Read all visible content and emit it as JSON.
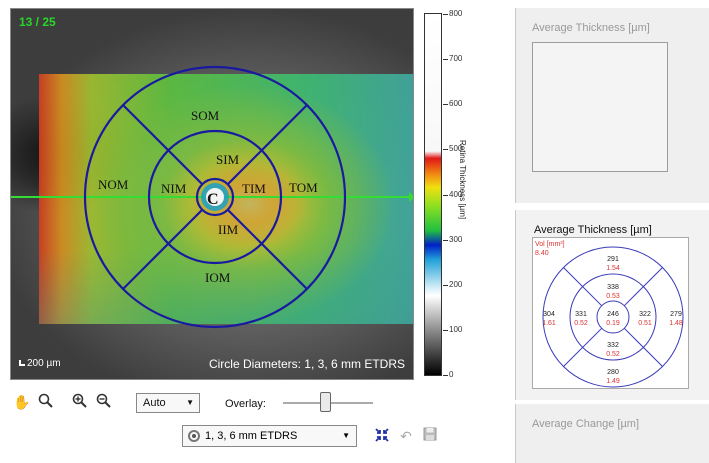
{
  "fundus": {
    "frame_counter": "13 / 25",
    "scale_label": "200 µm",
    "circle_diameters": "Circle Diameters: 1, 3, 6 mm ETDRS",
    "center_label": "C",
    "sectors": {
      "som": "SOM",
      "nom": "NOM",
      "tom": "TOM",
      "iom": "IOM",
      "sim": "SIM",
      "nim": "NIM",
      "tim": "TIM",
      "iim": "IIM"
    }
  },
  "colorbar": {
    "title": "Retina Thickness [µm]",
    "ticks": [
      "800",
      "700",
      "600",
      "500",
      "400",
      "300",
      "200",
      "100",
      "0"
    ]
  },
  "panels": {
    "top_title": "Average Thickness [µm]",
    "mid_title": "Average Thickness [µm]",
    "bottom_title": "Average Change [µm]"
  },
  "etdrs_map": {
    "vol_label": "Vol [mm³]",
    "vol_value": "8.40",
    "center": {
      "thickness": "246",
      "volume": "0.19"
    },
    "inner": {
      "superior": {
        "thickness": "338",
        "volume": "0.53"
      },
      "nasal": {
        "thickness": "331",
        "volume": "0.52"
      },
      "temporal": {
        "thickness": "322",
        "volume": "0.51"
      },
      "inferior": {
        "thickness": "332",
        "volume": "0.52"
      }
    },
    "outer": {
      "superior": {
        "thickness": "291",
        "volume": "1.54"
      },
      "nasal": {
        "thickness": "304",
        "volume": "1.61"
      },
      "temporal": {
        "thickness": "279",
        "volume": "1.48"
      },
      "inferior": {
        "thickness": "280",
        "volume": "1.49"
      }
    }
  },
  "toolbar": {
    "pan_icon": "hand-icon",
    "zoom_icon": "magnifier-icon",
    "zoom_in_icon": "zoom-in-icon",
    "zoom_out_icon": "zoom-out-icon",
    "zoom_select": "Auto",
    "overlay_label": "Overlay:",
    "grid_select": "1, 3, 6 mm ETDRS",
    "fit_icon": "collapse-icon",
    "undo_icon": "undo-icon",
    "save_icon": "save-icon"
  },
  "colors": {
    "grid": "#1a1aa0",
    "scan_line": "#33dd33",
    "frame_counter": "#29d629",
    "volume_text": "#dd3333",
    "etdrs_grid": "#3a3ab8"
  }
}
